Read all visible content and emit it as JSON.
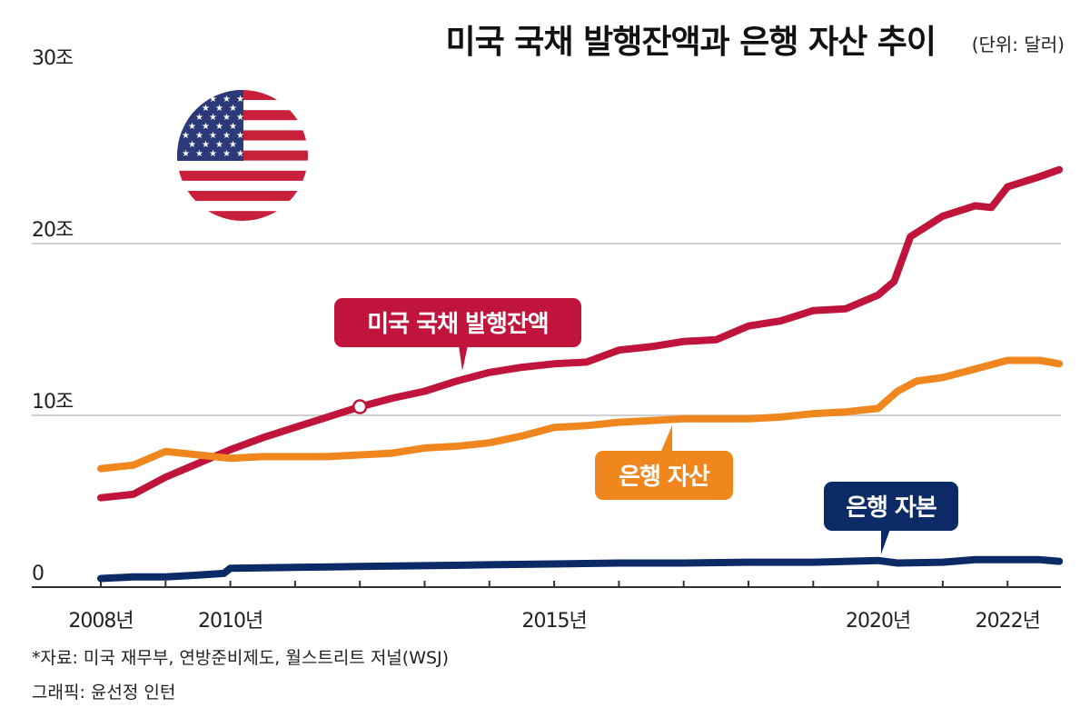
{
  "chart_data": {
    "type": "line",
    "title": "미국 국채 발행잔액과 은행 자산 추이",
    "unit": "(단위: 달러)",
    "y_ticks": [
      {
        "value": 0,
        "label": "0"
      },
      {
        "value": 10,
        "label": "10조"
      },
      {
        "value": 20,
        "label": "20조"
      },
      {
        "value": 30,
        "label": "30조"
      }
    ],
    "x_ticks": [
      {
        "value": 2008,
        "label": "2008년"
      },
      {
        "value": 2010,
        "label": "2010년"
      },
      {
        "value": 2015,
        "label": "2015년"
      },
      {
        "value": 2020,
        "label": "2020년"
      },
      {
        "value": 2022,
        "label": "2022년"
      }
    ],
    "xlim": [
      2008,
      2022.8
    ],
    "ylim": [
      0,
      30
    ],
    "grid": true,
    "series": [
      {
        "name": "미국 국채 발행잔액",
        "color": "#c0143c",
        "x": [
          2008,
          2008.5,
          2009,
          2009.5,
          2010,
          2010.5,
          2011,
          2011.5,
          2012,
          2012.5,
          2013,
          2013.5,
          2014,
          2014.5,
          2015,
          2015.5,
          2016,
          2016.5,
          2017,
          2017.5,
          2018,
          2018.5,
          2019,
          2019.5,
          2020,
          2020.25,
          2020.5,
          2021,
          2021.5,
          2021.75,
          2022,
          2022.5,
          2022.8
        ],
        "y": [
          5.2,
          5.4,
          6.4,
          7.2,
          8.0,
          8.7,
          9.3,
          9.9,
          10.5,
          11.0,
          11.4,
          12.0,
          12.5,
          12.8,
          13.0,
          13.1,
          13.8,
          14.0,
          14.3,
          14.4,
          15.2,
          15.5,
          16.1,
          16.2,
          17.0,
          17.8,
          20.4,
          21.6,
          22.2,
          22.1,
          23.3,
          23.9,
          24.3
        ]
      },
      {
        "name": "은행 자산",
        "color": "#f0861e",
        "x": [
          2008,
          2008.5,
          2009,
          2009.5,
          2010,
          2010.5,
          2011,
          2011.5,
          2012,
          2012.5,
          2013,
          2013.5,
          2014,
          2014.5,
          2015,
          2015.5,
          2016,
          2016.5,
          2017,
          2017.5,
          2018,
          2018.5,
          2019,
          2019.5,
          2020,
          2020.3,
          2020.6,
          2021,
          2021.5,
          2022,
          2022.5,
          2022.8
        ],
        "y": [
          6.9,
          7.1,
          7.9,
          7.7,
          7.5,
          7.6,
          7.6,
          7.6,
          7.7,
          7.8,
          8.1,
          8.2,
          8.4,
          8.8,
          9.3,
          9.4,
          9.6,
          9.7,
          9.8,
          9.8,
          9.8,
          9.9,
          10.1,
          10.2,
          10.4,
          11.4,
          12.0,
          12.2,
          12.7,
          13.2,
          13.2,
          13.0
        ]
      },
      {
        "name": "은행 자본",
        "color": "#0b2a66",
        "x": [
          2008,
          2008.5,
          2009,
          2009.5,
          2009.9,
          2010,
          2011,
          2012,
          2013,
          2014,
          2015,
          2016,
          2017,
          2018,
          2019,
          2020,
          2020.3,
          2021,
          2021.5,
          2022,
          2022.5,
          2022.8
        ],
        "y": [
          0.5,
          0.6,
          0.6,
          0.7,
          0.8,
          1.1,
          1.15,
          1.2,
          1.25,
          1.3,
          1.35,
          1.4,
          1.4,
          1.45,
          1.45,
          1.55,
          1.4,
          1.45,
          1.6,
          1.6,
          1.6,
          1.5
        ]
      }
    ],
    "annotations": [
      {
        "series": "미국 국채 발행잔액",
        "x": 2012,
        "y": 10.5,
        "marker": "open-circle"
      }
    ]
  },
  "decor": {
    "flag_icon": "us-flag-circle-icon"
  },
  "footer": {
    "source": "*자료: 미국 재무부, 연방준비제도, 월스트리트 저널(WSJ)",
    "credit": "그래픽: 윤선정 인턴"
  }
}
